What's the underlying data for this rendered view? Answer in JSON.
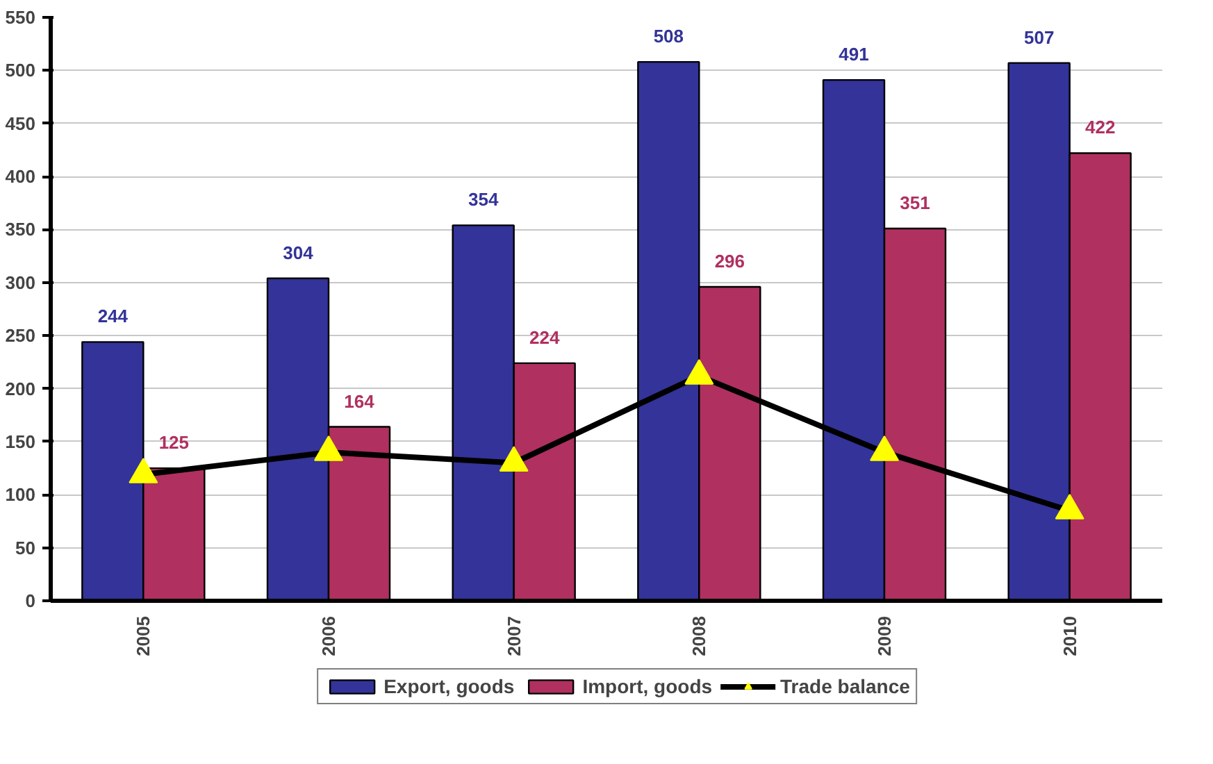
{
  "chart_data": {
    "type": "bar",
    "categories": [
      "2005",
      "2006",
      "2007",
      "2008",
      "2009",
      "2010"
    ],
    "series": [
      {
        "name": "Export, goods",
        "color": "#333399",
        "values": [
          244,
          304,
          354,
          508,
          491,
          507
        ],
        "value_labels": [
          "244",
          "304",
          "354",
          "508",
          "491",
          "507"
        ]
      },
      {
        "name": "Import, goods",
        "color": "#b03060",
        "values": [
          125,
          164,
          224,
          296,
          351,
          422
        ],
        "value_labels": [
          "125",
          "164",
          "224",
          "296",
          "351",
          "422"
        ]
      },
      {
        "name": "Trade balance",
        "type": "line",
        "color": "#000000",
        "marker": "triangle",
        "values": [
          119,
          140,
          130,
          212,
          140,
          85
        ]
      }
    ],
    "ylim": [
      0,
      550
    ],
    "yticks": [
      0,
      50,
      100,
      150,
      200,
      250,
      300,
      350,
      400,
      450,
      500,
      550
    ],
    "grid": "y",
    "legend": "bottom"
  }
}
